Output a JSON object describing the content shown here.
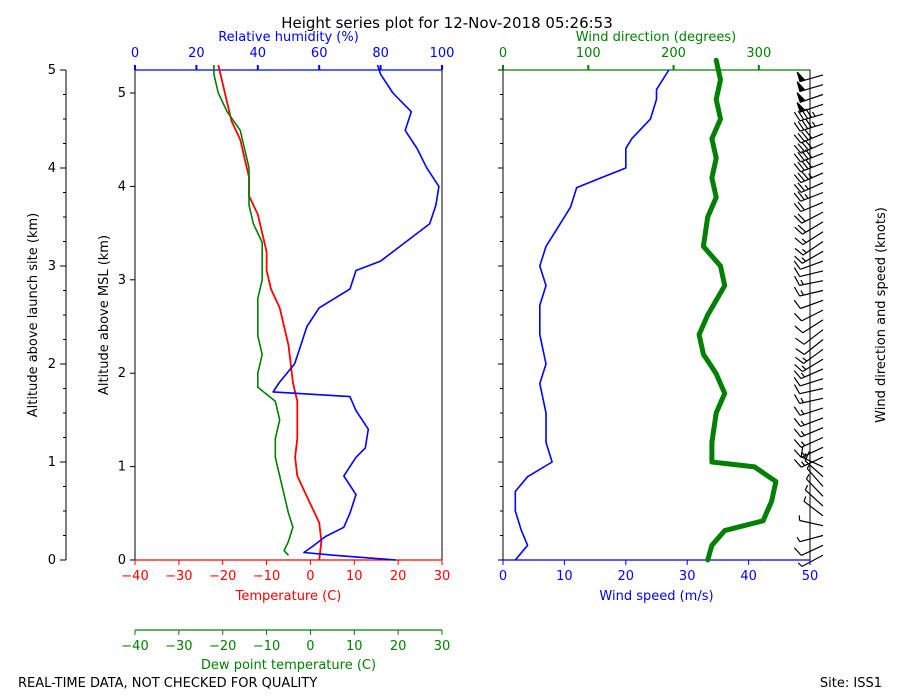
{
  "title": "Height series plot for 12-Nov-2018 05:26:53",
  "footer": {
    "left": "REAL-TIME DATA, NOT CHECKED FOR QUALITY",
    "right": "Site: ISS1"
  },
  "colors": {
    "temperature": "#ff0000",
    "dewpoint": "#008000",
    "humidity": "#0000ff",
    "wind_speed": "#0000ff",
    "wind_direction": "#008000",
    "barbs": "#000000"
  },
  "chart_data": [
    {
      "type": "line",
      "name": "thermo-panel",
      "axes": {
        "y_left": {
          "label": "Altitude above launch site (km)",
          "range": [
            0,
            5
          ],
          "ticks": [
            0,
            1,
            2,
            3,
            4,
            5
          ]
        },
        "y_right": {
          "label": "Altitude above MSL (km)",
          "range": [
            0,
            5.3
          ],
          "ticks": [
            0,
            1,
            2,
            3,
            4,
            5
          ]
        },
        "x_bottom": {
          "label": "Temperature (C)",
          "range": [
            -40,
            30
          ],
          "ticks": [
            -40,
            -30,
            -20,
            -10,
            0,
            10,
            20,
            30
          ]
        },
        "x_bottom2": {
          "label": "Dew point temperature (C)",
          "range": [
            -40,
            30
          ],
          "ticks": [
            -40,
            -30,
            -20,
            -10,
            0,
            10,
            20,
            30
          ]
        },
        "x_top": {
          "label": "Relative humidity (%)",
          "range": [
            0,
            100
          ],
          "ticks": [
            0,
            20,
            40,
            60,
            80,
            100
          ]
        }
      },
      "series": [
        {
          "name": "Temperature",
          "axis": "x_bottom",
          "x_unit": "C",
          "points": [
            [
              2,
              0
            ],
            [
              2.5,
              0.2
            ],
            [
              2,
              0.4
            ],
            [
              1,
              0.5
            ],
            [
              -1,
              0.7
            ],
            [
              -3,
              0.9
            ],
            [
              -3.5,
              1.1
            ],
            [
              -3,
              1.3
            ],
            [
              -3,
              1.5
            ],
            [
              -3,
              1.7
            ],
            [
              -4,
              1.9
            ],
            [
              -4.5,
              2.1
            ],
            [
              -5,
              2.3
            ],
            [
              -6,
              2.5
            ],
            [
              -7,
              2.7
            ],
            [
              -9,
              2.9
            ],
            [
              -10,
              3.1
            ],
            [
              -10,
              3.3
            ],
            [
              -11,
              3.5
            ],
            [
              -12,
              3.7
            ],
            [
              -14,
              3.9
            ],
            [
              -14,
              4.1
            ],
            [
              -15,
              4.3
            ],
            [
              -16,
              4.5
            ],
            [
              -18,
              4.7
            ],
            [
              -19,
              4.9
            ],
            [
              -20,
              5.1
            ],
            [
              -21,
              5.3
            ]
          ]
        },
        {
          "name": "Dew point temperature",
          "axis": "x_bottom2",
          "x_unit": "C",
          "points": [
            [
              -5,
              0.05
            ],
            [
              -6,
              0.1
            ],
            [
              -5,
              0.2
            ],
            [
              -4,
              0.35
            ],
            [
              -5,
              0.5
            ],
            [
              -6,
              0.7
            ],
            [
              -7,
              0.9
            ],
            [
              -8,
              1.1
            ],
            [
              -8,
              1.3
            ],
            [
              -7,
              1.5
            ],
            [
              -8,
              1.7
            ],
            [
              -12,
              1.85
            ],
            [
              -12,
              2.0
            ],
            [
              -11,
              2.2
            ],
            [
              -12,
              2.4
            ],
            [
              -12,
              2.6
            ],
            [
              -12,
              2.8
            ],
            [
              -11,
              3.0
            ],
            [
              -11,
              3.2
            ],
            [
              -11,
              3.4
            ],
            [
              -13,
              3.6
            ],
            [
              -14,
              3.8
            ],
            [
              -14,
              4.0
            ],
            [
              -14,
              4.2
            ],
            [
              -15,
              4.4
            ],
            [
              -16,
              4.6
            ],
            [
              -19,
              4.8
            ],
            [
              -21,
              5.0
            ],
            [
              -22,
              5.2
            ],
            [
              -22,
              5.3
            ]
          ]
        },
        {
          "name": "Relative humidity",
          "axis": "x_top",
          "x_unit": "%",
          "points": [
            [
              85,
              0.0
            ],
            [
              65,
              0.05
            ],
            [
              55,
              0.08
            ],
            [
              58,
              0.15
            ],
            [
              62,
              0.25
            ],
            [
              68,
              0.35
            ],
            [
              70,
              0.5
            ],
            [
              72,
              0.7
            ],
            [
              68,
              0.9
            ],
            [
              72,
              1.1
            ],
            [
              75,
              1.2
            ],
            [
              76,
              1.4
            ],
            [
              72,
              1.6
            ],
            [
              70,
              1.75
            ],
            [
              45,
              1.8
            ],
            [
              47,
              1.9
            ],
            [
              52,
              2.1
            ],
            [
              54,
              2.3
            ],
            [
              56,
              2.5
            ],
            [
              60,
              2.7
            ],
            [
              70,
              2.9
            ],
            [
              72,
              3.1
            ],
            [
              80,
              3.2
            ],
            [
              88,
              3.4
            ],
            [
              96,
              3.6
            ],
            [
              98,
              3.8
            ],
            [
              99,
              4.0
            ],
            [
              95,
              4.2
            ],
            [
              92,
              4.4
            ],
            [
              88,
              4.6
            ],
            [
              90,
              4.8
            ],
            [
              84,
              5.0
            ],
            [
              80,
              5.2
            ],
            [
              79,
              5.3
            ]
          ]
        }
      ]
    },
    {
      "type": "line",
      "name": "wind-panel",
      "axes": {
        "y": {
          "range": [
            0,
            5
          ]
        },
        "x_bottom": {
          "label": "Wind speed (m/s)",
          "range": [
            0,
            50
          ],
          "ticks": [
            0,
            10,
            20,
            30,
            40,
            50
          ]
        },
        "x_top": {
          "label": "Wind direction (degrees)",
          "range": [
            0,
            360
          ],
          "ticks": [
            0,
            100,
            200,
            300
          ]
        },
        "barbs_label": "Wind direction and speed (knots)"
      },
      "series": [
        {
          "name": "Wind speed",
          "axis": "x_bottom",
          "x_unit": "m/s",
          "points": [
            [
              2,
              0
            ],
            [
              4,
              0.15
            ],
            [
              3,
              0.3
            ],
            [
              2,
              0.5
            ],
            [
              2,
              0.7
            ],
            [
              4,
              0.85
            ],
            [
              8,
              1.0
            ],
            [
              7,
              1.2
            ],
            [
              7,
              1.5
            ],
            [
              6,
              1.8
            ],
            [
              7,
              2.0
            ],
            [
              6,
              2.3
            ],
            [
              6,
              2.6
            ],
            [
              7,
              2.8
            ],
            [
              6,
              3.0
            ],
            [
              7,
              3.2
            ],
            [
              9,
              3.4
            ],
            [
              11,
              3.6
            ],
            [
              12,
              3.8
            ],
            [
              16,
              3.9
            ],
            [
              20,
              4.0
            ],
            [
              20,
              4.2
            ],
            [
              21,
              4.3
            ],
            [
              24,
              4.5
            ],
            [
              25,
              4.7
            ],
            [
              25,
              4.8
            ],
            [
              27,
              5.0
            ]
          ]
        },
        {
          "name": "Wind direction",
          "axis": "x_top",
          "x_unit": "deg",
          "points": [
            [
              240,
              0.0
            ],
            [
              245,
              0.15
            ],
            [
              260,
              0.3
            ],
            [
              305,
              0.4
            ],
            [
              315,
              0.6
            ],
            [
              320,
              0.8
            ],
            [
              295,
              0.95
            ],
            [
              245,
              1.0
            ],
            [
              245,
              1.2
            ],
            [
              250,
              1.5
            ],
            [
              260,
              1.7
            ],
            [
              250,
              1.9
            ],
            [
              235,
              2.1
            ],
            [
              230,
              2.3
            ],
            [
              240,
              2.5
            ],
            [
              260,
              2.8
            ],
            [
              255,
              3.0
            ],
            [
              235,
              3.2
            ],
            [
              240,
              3.5
            ],
            [
              250,
              3.7
            ],
            [
              245,
              3.9
            ],
            [
              250,
              4.1
            ],
            [
              245,
              4.3
            ],
            [
              255,
              4.5
            ],
            [
              250,
              4.7
            ],
            [
              255,
              4.9
            ],
            [
              250,
              5.1
            ]
          ]
        }
      ]
    }
  ]
}
